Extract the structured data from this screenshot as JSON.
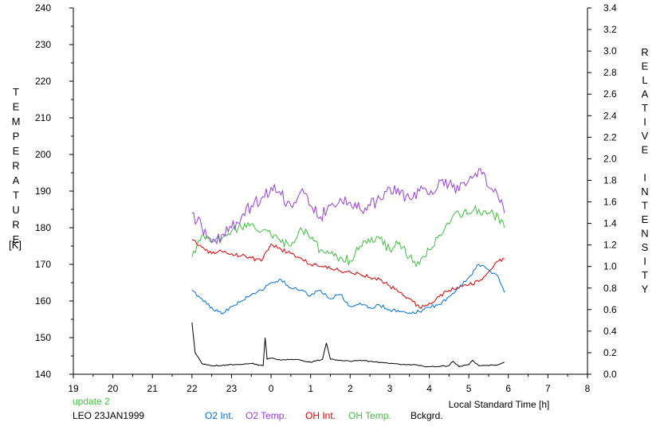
{
  "chart_data": {
    "type": "line",
    "ylabel_left": "TEMPERATURE",
    "ylabel_left_unit": "[K]",
    "ylabel_right": "RELATIVE INTENSITY",
    "xlabel": "Local Standard Time [h]",
    "x_ticks": [
      "19",
      "20",
      "21",
      "22",
      "23",
      "0",
      "1",
      "2",
      "3",
      "4",
      "5",
      "6",
      "7",
      "8"
    ],
    "xlim": [
      19,
      32
    ],
    "ylim_left": [
      140,
      240
    ],
    "ylim_right": [
      0.0,
      3.4
    ],
    "y_ticks_left": [
      "140",
      "150",
      "160",
      "170",
      "180",
      "190",
      "200",
      "210",
      "220",
      "230",
      "240"
    ],
    "y_ticks_right": [
      "0.0",
      "0.2",
      "0.4",
      "0.6",
      "0.8",
      "1.0",
      "1.2",
      "1.4",
      "1.6",
      "1.8",
      "2.0",
      "2.2",
      "2.4",
      "2.6",
      "2.8",
      "3.0",
      "3.2",
      "3.4"
    ],
    "grid": false,
    "legend_position": "bottom",
    "series": [
      {
        "name": "O2 Int.",
        "axis": "right",
        "color": "#0070e0",
        "x": [
          22.0,
          22.25,
          22.5,
          22.75,
          23.0,
          23.25,
          23.5,
          23.75,
          24.0,
          24.25,
          24.5,
          24.75,
          25.0,
          25.25,
          25.5,
          25.75,
          26.0,
          26.25,
          26.5,
          26.75,
          27.0,
          27.25,
          27.5,
          27.75,
          28.0,
          28.25,
          28.5,
          28.75,
          29.0,
          29.25,
          29.5,
          29.75,
          29.9
        ],
        "values": [
          0.78,
          0.7,
          0.62,
          0.56,
          0.63,
          0.68,
          0.74,
          0.78,
          0.85,
          0.88,
          0.8,
          0.78,
          0.73,
          0.78,
          0.7,
          0.74,
          0.63,
          0.66,
          0.62,
          0.64,
          0.6,
          0.58,
          0.57,
          0.58,
          0.62,
          0.65,
          0.72,
          0.8,
          0.9,
          1.02,
          0.97,
          0.9,
          0.76
        ]
      },
      {
        "name": "O2 Temp.",
        "axis": "left",
        "color": "#9540e0",
        "x": [
          22.0,
          22.25,
          22.5,
          22.75,
          23.0,
          23.25,
          23.5,
          23.75,
          24.0,
          24.25,
          24.5,
          24.75,
          25.0,
          25.25,
          25.5,
          25.75,
          26.0,
          26.25,
          26.5,
          26.75,
          27.0,
          27.25,
          27.5,
          27.75,
          28.0,
          28.25,
          28.5,
          28.75,
          29.0,
          29.25,
          29.5,
          29.75,
          29.9
        ],
        "values": [
          184,
          180,
          176,
          178,
          180,
          183,
          186,
          188,
          191,
          189,
          186,
          190,
          186,
          183,
          186,
          188,
          187,
          185,
          186,
          188,
          191,
          189,
          188,
          190,
          189,
          193,
          192,
          190,
          193,
          196,
          191,
          188,
          184
        ]
      },
      {
        "name": "OH Int.",
        "axis": "right",
        "color": "#e00000",
        "x": [
          22.0,
          22.25,
          22.5,
          22.75,
          23.0,
          23.25,
          23.5,
          23.75,
          24.0,
          24.25,
          24.5,
          24.75,
          25.0,
          25.25,
          25.5,
          25.75,
          26.0,
          26.25,
          26.5,
          26.75,
          27.0,
          27.25,
          27.5,
          27.75,
          28.0,
          28.25,
          28.5,
          28.75,
          29.0,
          29.25,
          29.5,
          29.75,
          29.9
        ],
        "values": [
          1.25,
          1.18,
          1.12,
          1.14,
          1.12,
          1.1,
          1.08,
          1.05,
          1.21,
          1.16,
          1.12,
          1.08,
          1.02,
          1.0,
          0.98,
          0.96,
          0.95,
          0.93,
          0.9,
          0.88,
          0.82,
          0.76,
          0.7,
          0.62,
          0.66,
          0.72,
          0.78,
          0.8,
          0.83,
          0.86,
          0.95,
          1.05,
          1.07
        ]
      },
      {
        "name": "OH Temp.",
        "axis": "left",
        "color": "#40c040",
        "x": [
          22.0,
          22.25,
          22.5,
          22.75,
          23.0,
          23.25,
          23.5,
          23.75,
          24.0,
          24.25,
          24.5,
          24.75,
          25.0,
          25.25,
          25.5,
          25.75,
          26.0,
          26.25,
          26.5,
          26.75,
          27.0,
          27.25,
          27.5,
          27.75,
          28.0,
          28.25,
          28.5,
          28.75,
          29.0,
          29.25,
          29.5,
          29.75,
          29.9
        ],
        "values": [
          172,
          178,
          176,
          177,
          179,
          180,
          181,
          179,
          178,
          176,
          175,
          180,
          177,
          174,
          173,
          172,
          171,
          175,
          176,
          177,
          174,
          176,
          172,
          170,
          174,
          178,
          181,
          184,
          184,
          185,
          184,
          183,
          180
        ]
      },
      {
        "name": "Bckgrd.",
        "axis": "right",
        "color": "#000000",
        "x": [
          22.0,
          22.08,
          22.25,
          22.5,
          22.75,
          23.0,
          23.25,
          23.5,
          23.8,
          23.85,
          23.9,
          24.0,
          24.25,
          24.5,
          24.75,
          25.0,
          25.3,
          25.4,
          25.5,
          25.75,
          26.0,
          26.25,
          26.5,
          26.75,
          27.0,
          27.25,
          27.5,
          27.75,
          28.0,
          28.25,
          28.5,
          28.6,
          28.75,
          29.0,
          29.1,
          29.25,
          29.5,
          29.75,
          29.9
        ],
        "values": [
          0.48,
          0.2,
          0.1,
          0.08,
          0.08,
          0.09,
          0.09,
          0.1,
          0.08,
          0.34,
          0.14,
          0.15,
          0.13,
          0.14,
          0.13,
          0.11,
          0.14,
          0.29,
          0.14,
          0.13,
          0.12,
          0.13,
          0.12,
          0.11,
          0.1,
          0.09,
          0.09,
          0.08,
          0.07,
          0.07,
          0.08,
          0.12,
          0.07,
          0.09,
          0.13,
          0.08,
          0.08,
          0.09,
          0.11
        ]
      }
    ]
  },
  "bottom": {
    "update_text": "update 2",
    "station_date": "LEO 23JAN1999",
    "update_color": "#40c040"
  }
}
